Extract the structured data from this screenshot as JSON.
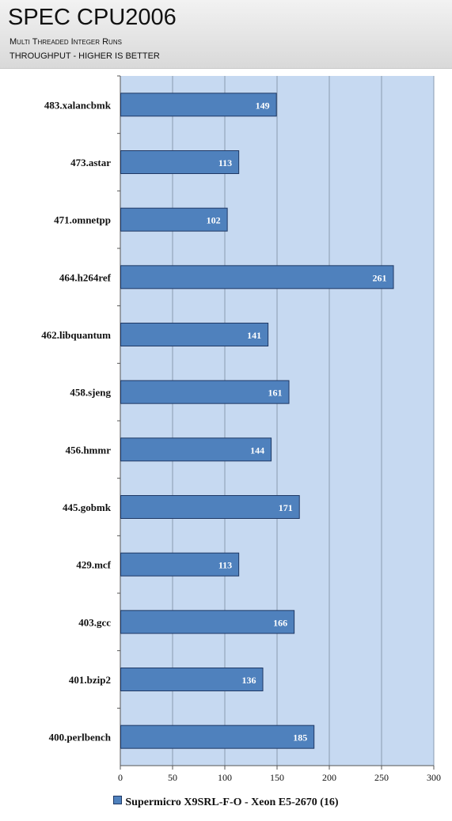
{
  "header": {
    "title": "SPEC CPU2006",
    "subtitle1": "Multi Threaded Integer Runs",
    "subtitle2": "THROUGHPUT - HIGHER IS BETTER"
  },
  "legend": {
    "label": "Supermicro X9SRL-F-O  - Xeon E5-2670 (16)"
  },
  "colors": {
    "bar": "#4f81bd",
    "bar_border": "#1f3864",
    "plot_bg": "#c6d9f1",
    "grid": "#8a9bb0"
  },
  "chart_data": {
    "type": "bar",
    "orientation": "horizontal",
    "title": "SPEC CPU2006",
    "categories": [
      "483.xalancbmk",
      "473.astar",
      "471.omnetpp",
      "464.h264ref",
      "462.libquantum",
      "458.sjeng",
      "456.hmmr",
      "445.gobmk",
      "429.mcf",
      "403.gcc",
      "401.bzip2",
      "400.perlbench"
    ],
    "series": [
      {
        "name": "Supermicro X9SRL-F-O  - Xeon E5-2670 (16)",
        "values": [
          149,
          113,
          102,
          261,
          141,
          161,
          144,
          171,
          113,
          166,
          136,
          185
        ]
      }
    ],
    "xlim": [
      0,
      300
    ],
    "xticks": [
      0,
      50,
      100,
      150,
      200,
      250,
      300
    ],
    "grid": true,
    "legend_position": "bottom",
    "data_labels": true
  }
}
